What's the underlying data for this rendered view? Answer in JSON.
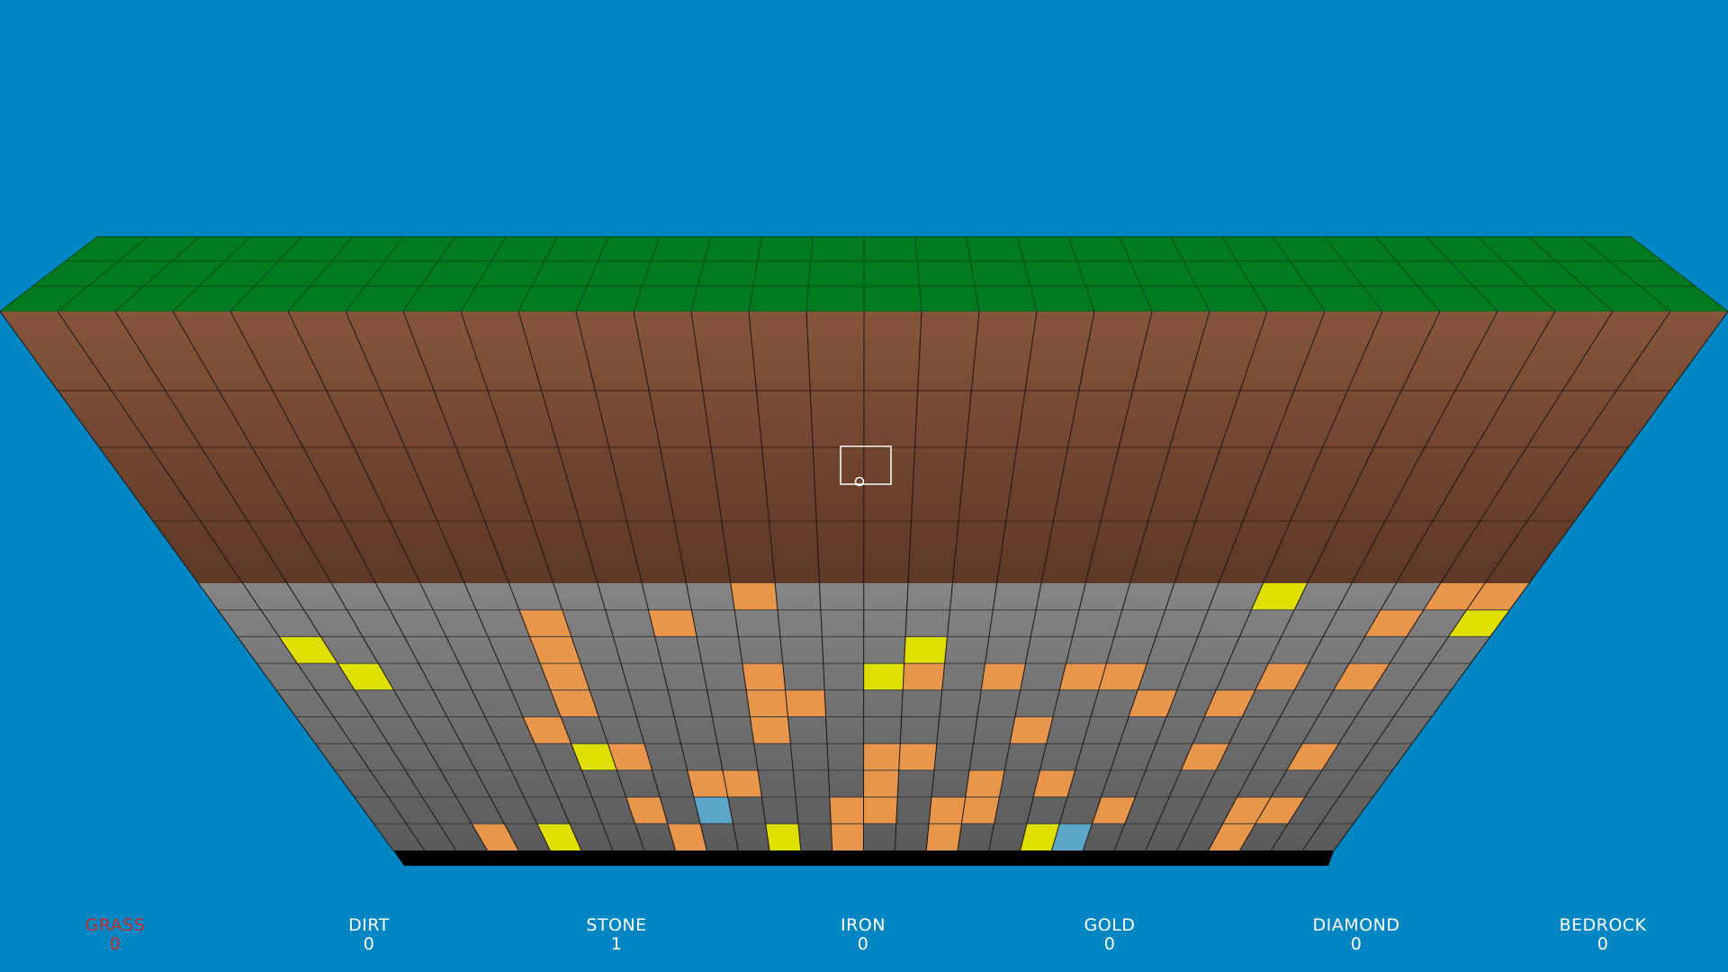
{
  "blocks": [
    {
      "label": "GRASS",
      "count": "0",
      "selected": true
    },
    {
      "label": "DIRT",
      "count": "0",
      "selected": false
    },
    {
      "label": "STONE",
      "count": "1",
      "selected": false
    },
    {
      "label": "IRON",
      "count": "0",
      "selected": false
    },
    {
      "label": "GOLD",
      "count": "0",
      "selected": false
    },
    {
      "label": "DIAMOND",
      "count": "0",
      "selected": false
    },
    {
      "label": "BEDROCK",
      "count": "0",
      "selected": false
    }
  ],
  "colors": {
    "sky": "#0086c3",
    "grass": "#027a20",
    "dirt": "#7a4a32",
    "stone": "#7c7c7c",
    "iron": "#e8964c",
    "gold": "#e0e000",
    "diamond": "#5aa6c8",
    "bedrock": "#000000"
  }
}
